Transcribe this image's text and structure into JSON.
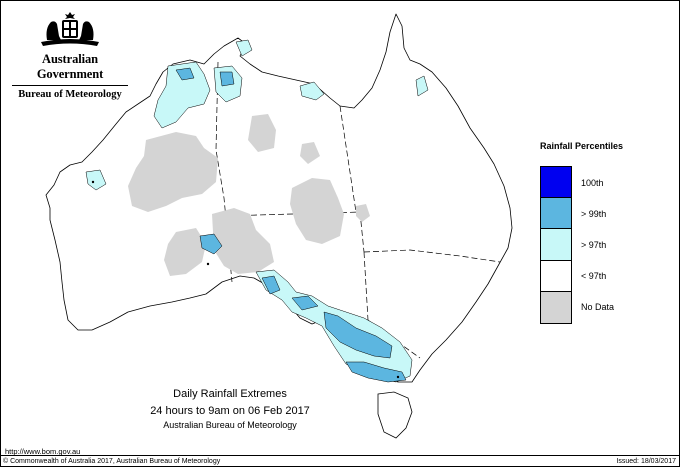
{
  "header": {
    "gov_name": "Australian Government",
    "bureau_name": "Bureau of Meteorology",
    "logo_icon": "coat-of-arms-icon"
  },
  "legend": {
    "title": "Rainfall Percentiles",
    "items": [
      {
        "label": "100th",
        "color": "#0000f0"
      },
      {
        "label": "> 99th",
        "color": "#5cb6e0"
      },
      {
        "label": "> 97th",
        "color": "#c8f8f8"
      },
      {
        "label": "< 97th",
        "color": "#ffffff"
      },
      {
        "label": "No Data",
        "color": "#d4d4d4"
      }
    ]
  },
  "caption": {
    "title": "Daily Rainfall Extremes",
    "subtitle": "24 hours to 9am on 06 Feb 2017",
    "source": "Australian Bureau of Meteorology"
  },
  "footer": {
    "url": "http://www.bom.gov.au",
    "copyright": "© Commonwealth of Australia 2017, Australian Bureau of Meteorology",
    "issued": "Issued: 18/03/2017"
  }
}
